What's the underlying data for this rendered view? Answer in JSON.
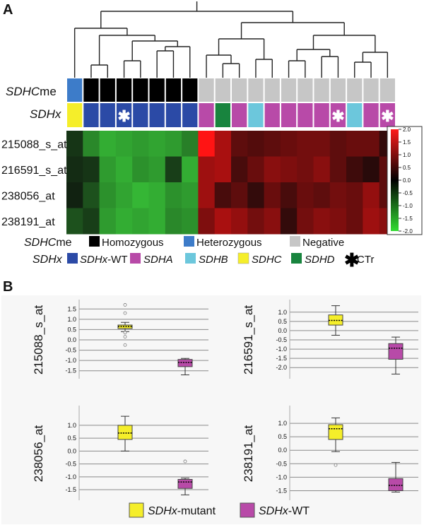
{
  "panel_a": {
    "label": "A",
    "row_labels": {
      "sdhc": "SDHC",
      "sdhc_suffix": "me",
      "sdhx": "SDHx"
    },
    "colors": {
      "homozygous": "#000000",
      "heterozygous": "#3d7cc9",
      "negative": "#c6c6c6",
      "sdhx_wt": "#2b4aa6",
      "sdha": "#b84aa8",
      "sdhb": "#6cc7dc",
      "sdhc": "#f5ee2a",
      "sdhd": "#18843e"
    },
    "sdhc_me_status": [
      "heterozygous",
      "homozygous",
      "homozygous",
      "homozygous",
      "homozygous",
      "homozygous",
      "homozygous",
      "homozygous",
      "negative",
      "negative",
      "negative",
      "negative",
      "negative",
      "negative",
      "negative",
      "negative",
      "negative",
      "negative",
      "negative",
      "negative"
    ],
    "sdhx_status": [
      "sdhc",
      "sdhx_wt",
      "sdhx_wt",
      "sdhx_wt",
      "sdhx_wt",
      "sdhx_wt",
      "sdhx_wt",
      "sdhx_wt",
      "sdha",
      "sdhd",
      "sdha",
      "sdhb",
      "sdha",
      "sdha",
      "sdha",
      "sdha",
      "sdha",
      "sdhb",
      "sdha",
      "sdha"
    ],
    "ctr_marks": [
      3,
      16,
      19
    ],
    "probes": [
      "215088_s_at",
      "216591_s_at",
      "238056_at",
      "238191_at"
    ],
    "heatmap_values": [
      [
        -0.3,
        -1.2,
        -1.6,
        -1.5,
        -1.4,
        -1.5,
        -1.4,
        -1.1,
        2.0,
        1.2,
        0.5,
        0.4,
        0.5,
        0.6,
        0.7,
        0.7,
        0.5,
        0.6,
        0.6,
        0.1
      ],
      [
        -0.2,
        -0.3,
        -1.4,
        -1.6,
        -1.3,
        -1.4,
        -0.4,
        -1.6,
        1.1,
        1.2,
        0.3,
        0.6,
        0.9,
        0.8,
        0.7,
        0.9,
        0.5,
        0.2,
        0.0,
        0.5
      ],
      [
        -0.1,
        -0.6,
        -1.3,
        -1.5,
        -1.7,
        -1.6,
        -1.3,
        -1.4,
        1.1,
        0.3,
        0.5,
        0.1,
        0.6,
        0.3,
        0.6,
        0.5,
        0.7,
        0.6,
        1.0,
        0.5
      ],
      [
        -0.6,
        -0.4,
        -1.4,
        -1.6,
        -1.5,
        -1.6,
        -1.2,
        -1.3,
        0.8,
        1.2,
        1.0,
        0.7,
        0.9,
        0.1,
        0.7,
        0.9,
        0.8,
        0.6,
        1.1,
        0.9
      ]
    ],
    "colorbar": {
      "ticks": [
        "2.0",
        "1.5",
        "1.0",
        "0.5",
        "0.0",
        "-0.5",
        "-1.0",
        "-1.5",
        "-2.0"
      ],
      "min": -2.0,
      "max": 2.0
    },
    "legend_row1": {
      "label": "SDHC",
      "label_suffix": "me",
      "items": [
        "Homozygous",
        "Heterozygous",
        "Negative"
      ]
    },
    "legend_row2": {
      "label": "SDHx",
      "wt_prefix": "SDHx",
      "wt_suffix": "-WT",
      "items": [
        "SDHA",
        "SDHB",
        "SDHC",
        "SDHD"
      ],
      "ctr": "CTr"
    }
  },
  "chart_data": {
    "type": "box",
    "label": "B",
    "groups": [
      "SDHx-mutant",
      "SDHx-WT"
    ],
    "group_colors": [
      "#f5ee2a",
      "#b84aa8"
    ],
    "panels": [
      {
        "probe": "215088_s_at",
        "ylim": [
          -1.75,
          1.75
        ],
        "yticks": [],
        "ytick_labels": [],
        "boxes": [
          {
            "group": "SDHx-mutant",
            "whisker_low": 0.4,
            "q1": 0.55,
            "median": 0.65,
            "q3": 0.72,
            "whisker_high": 0.85,
            "outliers": [
              1.7,
              1.3,
              0.35,
              0.15,
              -0.25
            ]
          },
          {
            "group": "SDHx-WT",
            "whisker_low": -1.7,
            "q1": -1.3,
            "median": -1.1,
            "q3": -0.95,
            "whisker_high": -0.9,
            "outliers": []
          }
        ]
      },
      {
        "probe": "216591_s_at",
        "ylim": [
          -2.45,
          1.45
        ],
        "yticks": [
          1.0,
          0.5,
          0.0,
          -0.5,
          -1.0,
          -1.5,
          -2.0
        ],
        "ytick_labels": [
          "1.0",
          "0.5",
          "0.0",
          "-0.5",
          "-1.0",
          "-1.5",
          "-2.0"
        ],
        "boxes": [
          {
            "group": "SDHx-mutant",
            "whisker_low": -0.25,
            "q1": 0.3,
            "median": 0.55,
            "q3": 0.85,
            "whisker_high": 1.35,
            "outliers": []
          },
          {
            "group": "SDHx-WT",
            "whisker_low": -2.35,
            "q1": -1.55,
            "median": -0.95,
            "q3": -0.7,
            "whisker_high": -0.35,
            "outliers": []
          }
        ]
      },
      {
        "probe": "238056_at",
        "ylim": [
          -1.8,
          1.6
        ],
        "yticks": [
          1.0,
          0.5,
          0.0,
          -0.5,
          -1.0,
          -1.5
        ],
        "ytick_labels": [
          "1.0",
          "0.5",
          "0.0",
          "-0.5",
          "-1.0",
          "-1.5"
        ],
        "boxes": [
          {
            "group": "SDHx-mutant",
            "whisker_low": 0.0,
            "q1": 0.45,
            "median": 0.7,
            "q3": 1.0,
            "whisker_high": 1.35,
            "outliers": []
          },
          {
            "group": "SDHx-WT",
            "whisker_low": -1.7,
            "q1": -1.45,
            "median": -1.2,
            "q3": -1.1,
            "whisker_high": -1.05,
            "outliers": [
              -0.4
            ]
          }
        ]
      },
      {
        "probe": "238191_at",
        "ylim": [
          -1.75,
          1.5
        ],
        "yticks": [
          1.0,
          0.5,
          0.0,
          -0.5,
          -1.0,
          -1.5
        ],
        "ytick_labels": [
          "1.0",
          "0.5",
          "0.0",
          "-0.5",
          "-1.0",
          "-1.5"
        ],
        "boxes": [
          {
            "group": "SDHx-mutant",
            "whisker_low": -0.05,
            "q1": 0.4,
            "median": 0.8,
            "q3": 0.95,
            "whisker_high": 1.2,
            "outliers": [
              -0.55
            ]
          },
          {
            "group": "SDHx-WT",
            "whisker_low": -1.55,
            "q1": -1.5,
            "median": -1.3,
            "q3": -1.05,
            "whisker_high": -0.45,
            "outliers": []
          }
        ]
      }
    ],
    "legend": [
      {
        "prefix": "SDHx",
        "suffix": "-mutant"
      },
      {
        "prefix": "SDHx",
        "suffix": "-WT"
      }
    ]
  }
}
